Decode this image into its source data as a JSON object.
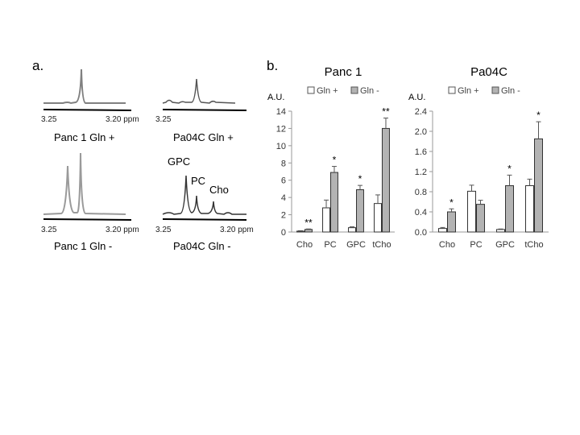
{
  "panel_a": {
    "letter": "a.",
    "ppm_left": "3.25",
    "ppm_right": "3.20 ppm",
    "labels": {
      "panc_plus": "Panc 1 Gln +",
      "pa04c_plus": "Pa04C Gln +",
      "panc_minus": "Panc 1 Gln -",
      "pa04c_minus": "Pa04C Gln -"
    },
    "peaks": {
      "gpc": "GPC",
      "pc": "PC",
      "cho": "Cho"
    }
  },
  "panel_b": {
    "letter": "b."
  },
  "chart_data": [
    {
      "type": "bar",
      "title": "Panc 1",
      "ylabel": "A.U.",
      "ylim": [
        0,
        14
      ],
      "yticks": [
        "0",
        "2",
        "4",
        "6",
        "8",
        "10",
        "12",
        "14"
      ],
      "categories": [
        "Cho",
        "PC",
        "GPC",
        "tCho"
      ],
      "legend": "top",
      "grid": false,
      "series": [
        {
          "name": "Gln +",
          "color": "#ffffff",
          "values": [
            0.1,
            2.8,
            0.5,
            3.3
          ],
          "errors": [
            0.05,
            0.9,
            0.1,
            1.0
          ]
        },
        {
          "name": "Gln -",
          "color": "#b3b3b3",
          "values": [
            0.3,
            6.9,
            4.9,
            12.0
          ],
          "errors": [
            0.05,
            0.7,
            0.5,
            1.2
          ]
        }
      ],
      "annotations": [
        "**",
        "*",
        "*",
        "**"
      ]
    },
    {
      "type": "bar",
      "title": "Pa04C",
      "ylabel": "A.U.",
      "ylim": [
        0,
        2.4
      ],
      "yticks": [
        "0.0",
        "0.4",
        "0.8",
        "1.2",
        "1.6",
        "2.0",
        "2.4"
      ],
      "categories": [
        "Cho",
        "PC",
        "GPC",
        "tCho"
      ],
      "legend": "top",
      "grid": false,
      "series": [
        {
          "name": "Gln +",
          "color": "#ffffff",
          "values": [
            0.07,
            0.81,
            0.05,
            0.92
          ],
          "errors": [
            0.02,
            0.12,
            0.01,
            0.13
          ]
        },
        {
          "name": "Gln -",
          "color": "#b3b3b3",
          "values": [
            0.4,
            0.55,
            0.92,
            1.85
          ],
          "errors": [
            0.06,
            0.08,
            0.21,
            0.34
          ]
        }
      ],
      "annotations": [
        "*",
        "",
        "*",
        "*"
      ]
    }
  ]
}
